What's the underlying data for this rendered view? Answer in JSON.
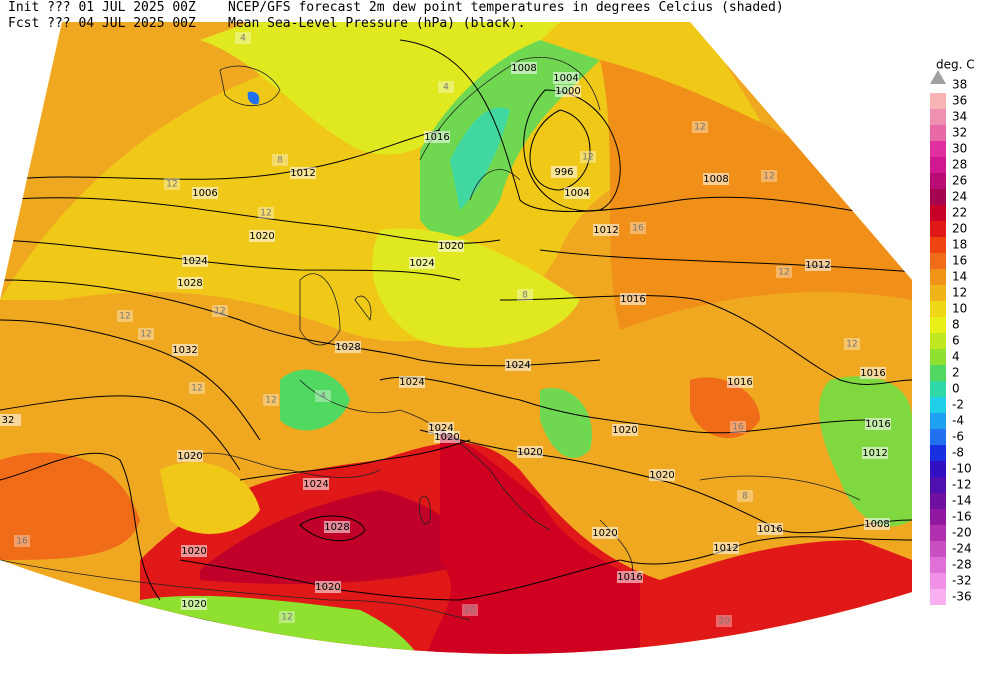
{
  "header": {
    "init": "Init  ??? 01 JUL 2025 00Z",
    "fcst": "Fcst  ??? 04 JUL 2025 00Z",
    "title": "NCEP/GFS forecast 2m dew point temperatures in degrees Celcius (shaded)",
    "subtitle": "Mean Sea-Level Pressure (hPa) (black)."
  },
  "colorbar": {
    "unit": "deg. C",
    "max_label": "38",
    "max_color": "#a0a0a0",
    "labels": [
      {
        "label": "36",
        "color": "#f8b4b4"
      },
      {
        "label": "34",
        "color": "#f090b0"
      },
      {
        "label": "32",
        "color": "#e868a8"
      },
      {
        "label": "30",
        "color": "#e030a0"
      },
      {
        "label": "28",
        "color": "#d01890"
      },
      {
        "label": "26",
        "color": "#b80c74"
      },
      {
        "label": "24",
        "color": "#a40450"
      },
      {
        "label": "22",
        "color": "#c80028"
      },
      {
        "label": "20",
        "color": "#e01818"
      },
      {
        "label": "18",
        "color": "#f04410"
      },
      {
        "label": "16",
        "color": "#f06c18"
      },
      {
        "label": "14",
        "color": "#f09418"
      },
      {
        "label": "12",
        "color": "#f0b418"
      },
      {
        "label": "10",
        "color": "#f0d818"
      },
      {
        "label": "8",
        "color": "#e8f018"
      },
      {
        "label": "6",
        "color": "#c0e820"
      },
      {
        "label": "4",
        "color": "#90e030"
      },
      {
        "label": "2",
        "color": "#50d860"
      },
      {
        "label": "0",
        "color": "#30d8a8"
      },
      {
        "label": "-2",
        "color": "#20d0e8"
      },
      {
        "label": "-4",
        "color": "#20a0f0"
      },
      {
        "label": "-6",
        "color": "#2070f0"
      },
      {
        "label": "-8",
        "color": "#1830e0"
      },
      {
        "label": "-10",
        "color": "#3010c0"
      },
      {
        "label": "-12",
        "color": "#5010b0"
      },
      {
        "label": "-14",
        "color": "#7010a0"
      },
      {
        "label": "-16",
        "color": "#9018a0"
      },
      {
        "label": "-20",
        "color": "#b030b0"
      },
      {
        "label": "-24",
        "color": "#c850c0"
      },
      {
        "label": "-28",
        "color": "#e070d8"
      },
      {
        "label": "-32",
        "color": "#f090e8"
      },
      {
        "label": "-36",
        "color": "#f8b0f0"
      }
    ]
  },
  "map": {
    "pressure_labels": [
      "1008",
      "1004",
      "1000",
      "1016",
      "996",
      "1004",
      "1012",
      "1008",
      "1006",
      "1012",
      "1020",
      "1020",
      "1024",
      "1024",
      "1012",
      "1028",
      "1016",
      "1032",
      "1028",
      "1024",
      "1024",
      "1016",
      "1016",
      "1024",
      "1020",
      "1020",
      "1020",
      "1020",
      "1016",
      "1012",
      "1020",
      "1024",
      "1028",
      "1008",
      "1016",
      "1020",
      "1012",
      "1020",
      "1020",
      "1016",
      "1020",
      "1016",
      "32"
    ],
    "dewpoint_labels": [
      "4",
      "4",
      "8",
      "12",
      "12",
      "12",
      "12",
      "12",
      "16",
      "12",
      "12",
      "12",
      "12",
      "8",
      "12",
      "12",
      "12",
      "4",
      "16",
      "20",
      "20",
      "16",
      "8",
      "12"
    ]
  }
}
